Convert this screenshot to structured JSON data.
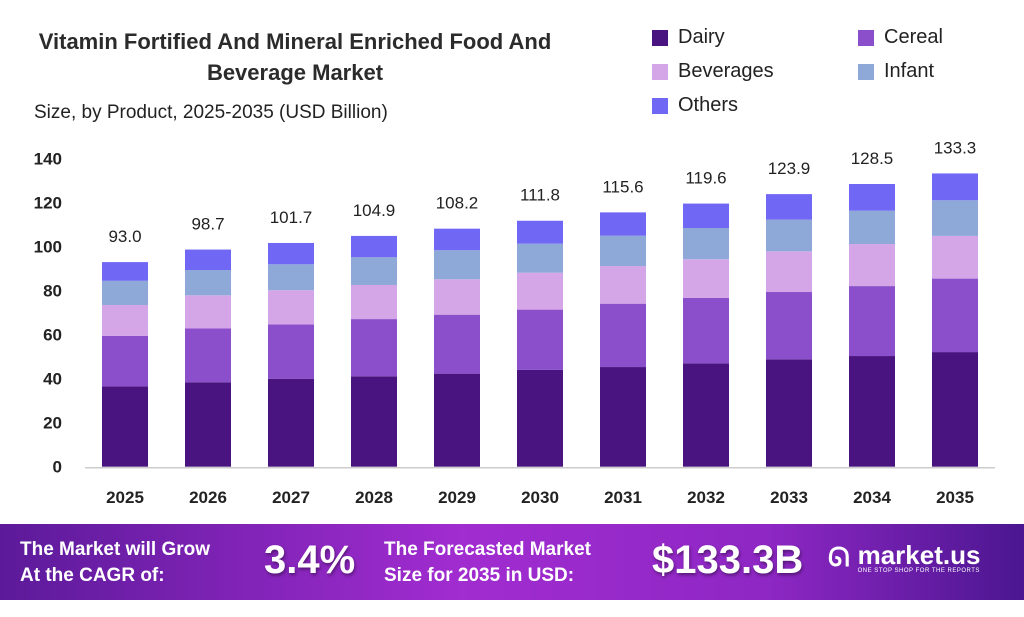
{
  "chart_data": {
    "type": "bar",
    "stacked": true,
    "title": "Vitamin Fortified And Mineral Enriched Food And Beverage Market",
    "subtitle": "Size, by Product, 2025-2035 (USD Billion)",
    "xlabel": "",
    "ylabel": "",
    "ylim": [
      0,
      140
    ],
    "yticks": [
      0,
      20,
      40,
      60,
      80,
      100,
      120,
      140
    ],
    "grid": false,
    "legend_position": "top-right",
    "categories": [
      "2025",
      "2026",
      "2027",
      "2028",
      "2029",
      "2030",
      "2031",
      "2032",
      "2033",
      "2034",
      "2035"
    ],
    "totals": [
      "93.0",
      "98.7",
      "101.7",
      "104.9",
      "108.2",
      "111.8",
      "115.6",
      "119.6",
      "123.9",
      "128.5",
      "133.3"
    ],
    "series": [
      {
        "name": "Dairy",
        "color": "#4a1480",
        "values": [
          36.5,
          38.4,
          40.0,
          41.1,
          42.3,
          44.0,
          45.3,
          47.0,
          48.8,
          50.3,
          52.1
        ]
      },
      {
        "name": "Cereal",
        "color": "#8b4fcb",
        "values": [
          23.0,
          24.5,
          24.7,
          26.0,
          26.8,
          27.4,
          28.8,
          29.7,
          30.6,
          31.8,
          33.4
        ]
      },
      {
        "name": "Beverages",
        "color": "#d4a6e8",
        "values": [
          14.0,
          15.0,
          15.5,
          15.5,
          16.1,
          16.8,
          17.1,
          17.6,
          18.5,
          19.1,
          19.4
        ]
      },
      {
        "name": "Infant",
        "color": "#8ea8d8",
        "values": [
          11.0,
          11.5,
          11.8,
          12.6,
          13.2,
          13.2,
          13.8,
          14.2,
          14.4,
          15.2,
          16.2
        ]
      },
      {
        "name": "Others",
        "color": "#7068f5",
        "values": [
          8.5,
          9.3,
          9.7,
          9.7,
          9.8,
          10.4,
          10.6,
          11.1,
          11.6,
          12.1,
          12.2
        ]
      }
    ]
  },
  "banner": {
    "cagr_label_1": "The Market will Grow",
    "cagr_label_2": "At the CAGR of:",
    "cagr_value": "3.4%",
    "forecast_label_1": "The Forecasted Market",
    "forecast_label_2": "Size for 2035 in USD:",
    "forecast_value": "$133.3B",
    "logo_name": "market.us",
    "logo_tagline": "ONE STOP SHOP FOR THE REPORTS"
  }
}
